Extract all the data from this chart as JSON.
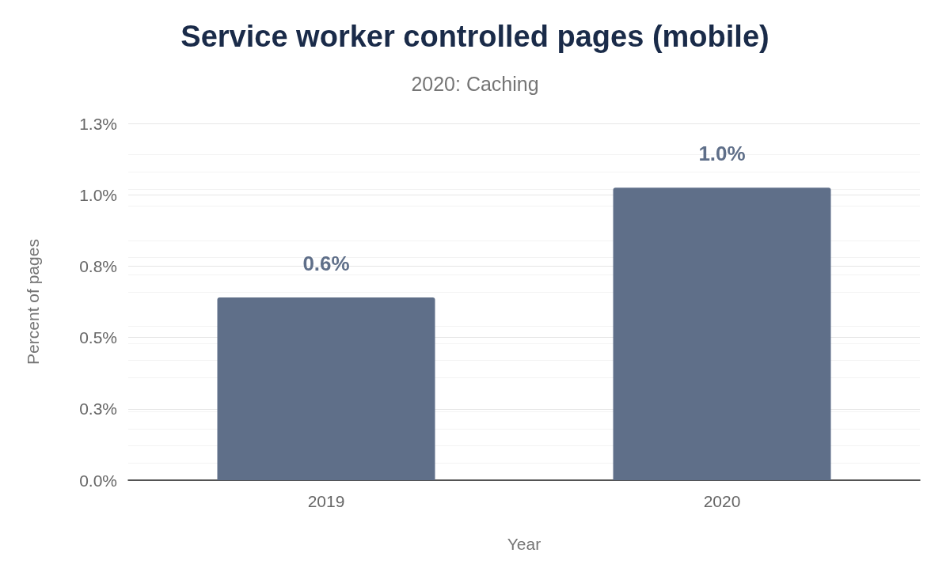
{
  "chart_data": {
    "type": "bar",
    "title": "Service worker controlled pages (mobile)",
    "subtitle": "2020: Caching",
    "xlabel": "Year",
    "ylabel": "Percent of pages",
    "categories": [
      "2019",
      "2020"
    ],
    "values": [
      0.64,
      1.025
    ],
    "color": "#5f6f89",
    "value_labels": [
      "0.6%",
      "1.0%"
    ],
    "ylim": [
      0,
      1.25
    ],
    "yticks": [
      {
        "value": 0,
        "label": "0.0%"
      },
      {
        "value": 0.25,
        "label": "0.3%"
      },
      {
        "value": 0.5,
        "label": "0.5%"
      },
      {
        "value": 0.75,
        "label": "0.8%"
      },
      {
        "value": 1.0,
        "label": "1.0%"
      },
      {
        "value": 1.25,
        "label": "1.3%"
      }
    ],
    "grid": "y"
  }
}
